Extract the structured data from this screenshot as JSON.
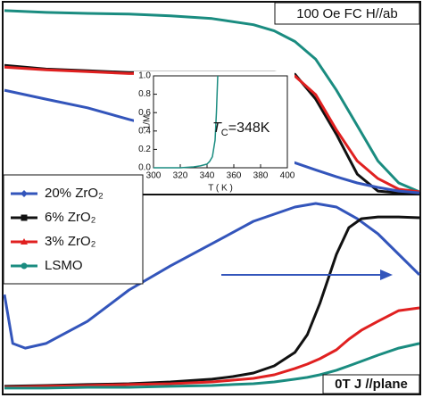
{
  "chart_data": [
    {
      "type": "line",
      "annotation": "100 Oe FC H//ab",
      "x": [
        0,
        10,
        20,
        30,
        40,
        50,
        60,
        65,
        70,
        75,
        80,
        85,
        90,
        95,
        100
      ],
      "xlim": [
        0,
        100
      ],
      "ylim": [
        0,
        100
      ],
      "series": [
        {
          "color": "#1a8c80",
          "values": [
            95.4,
            94.5,
            94.0,
            93.6,
            92.7,
            91.3,
            88.1,
            84.9,
            79.4,
            70.2,
            54.1,
            35.8,
            17.4,
            6.0,
            1.4
          ]
        },
        {
          "color": "#111111",
          "values": [
            67.0,
            65.1,
            64.2,
            63.3,
            63.3,
            63.3,
            63.3,
            63.3,
            62.4,
            49.5,
            31.2,
            10.6,
            1.8,
            0.9,
            0.9
          ]
        },
        {
          "color": "#e02020",
          "values": [
            66.1,
            64.7,
            63.8,
            62.8,
            62.8,
            62.8,
            62.8,
            62.4,
            61.5,
            51.8,
            33.5,
            17.4,
            8.3,
            2.8,
            1.4
          ]
        },
        {
          "color": "#3355bb",
          "values": [
            54.1,
            49.5,
            45.0,
            39.0,
            33.5,
            28.4,
            22.9,
            19.7,
            16.5,
            12.8,
            9.2,
            6.0,
            3.7,
            1.8,
            0.9
          ]
        }
      ]
    },
    {
      "type": "line",
      "annotation": "0T J //plane",
      "x": [
        0,
        10,
        20,
        30,
        40,
        50,
        55,
        60,
        65,
        70,
        73,
        76,
        80,
        83,
        86,
        90,
        95,
        100
      ],
      "xlim": [
        0,
        100
      ],
      "ylim": [
        0,
        100
      ],
      "legend": "upper left",
      "series": [
        {
          "name": "20% ZrO₂",
          "color": "#3355bb",
          "marker": "diamond",
          "x": [
            0,
            2,
            5,
            10,
            20,
            30,
            40,
            50,
            60,
            70,
            75,
            80,
            85,
            90,
            95,
            100
          ],
          "values": [
            49.5,
            24.8,
            22.5,
            24.8,
            36.0,
            51.8,
            64.0,
            75.2,
            86.5,
            93.7,
            95.5,
            93.7,
            87.8,
            80.2,
            69.8,
            59.5
          ]
        },
        {
          "name": "6% ZrO₂",
          "color": "#111111",
          "marker": "square",
          "values": [
            3.2,
            3.6,
            4.1,
            4.5,
            5.4,
            6.8,
            8.1,
            9.9,
            13.5,
            20.3,
            29.3,
            45.0,
            69.8,
            83.3,
            87.8,
            88.7,
            88.7,
            88.3
          ]
        },
        {
          "name": "3% ZrO₂",
          "color": "#e02020",
          "marker": "triangle",
          "values": [
            2.7,
            3.2,
            3.6,
            4.1,
            4.5,
            5.4,
            6.3,
            7.2,
            9.0,
            12.2,
            14.4,
            17.1,
            21.6,
            27.0,
            31.5,
            36.0,
            41.4,
            42.8
          ]
        },
        {
          "name": "LSMO",
          "color": "#1a8c80",
          "marker": "circle",
          "values": [
            2.3,
            2.3,
            2.7,
            2.7,
            3.2,
            3.6,
            4.1,
            4.5,
            5.4,
            6.8,
            7.7,
            9.0,
            11.3,
            13.5,
            15.8,
            18.9,
            22.5,
            24.8
          ]
        }
      ]
    },
    {
      "type": "line",
      "xlabel": "T ( K )",
      "ylabel": "1/M",
      "annotation": {
        "symbol": "T",
        "subscript": "C",
        "text": "=348K"
      },
      "x": [
        300,
        310,
        320,
        330,
        335,
        340,
        342,
        344,
        346,
        347,
        348
      ],
      "xlim": [
        300,
        400
      ],
      "ylim": [
        0,
        1
      ],
      "xticks": [
        300,
        320,
        340,
        360,
        380,
        400
      ],
      "yticks": [
        {
          "value": 0,
          "label": "0.0"
        },
        0.2,
        0.4,
        0.6,
        0.8,
        {
          "value": 1,
          "label": "1.0"
        }
      ],
      "series": [
        {
          "color": "#1a8c80",
          "values": [
            0,
            0,
            0,
            0.01,
            0.02,
            0.04,
            0.07,
            0.12,
            0.3,
            0.6,
            1.0
          ]
        }
      ]
    }
  ]
}
